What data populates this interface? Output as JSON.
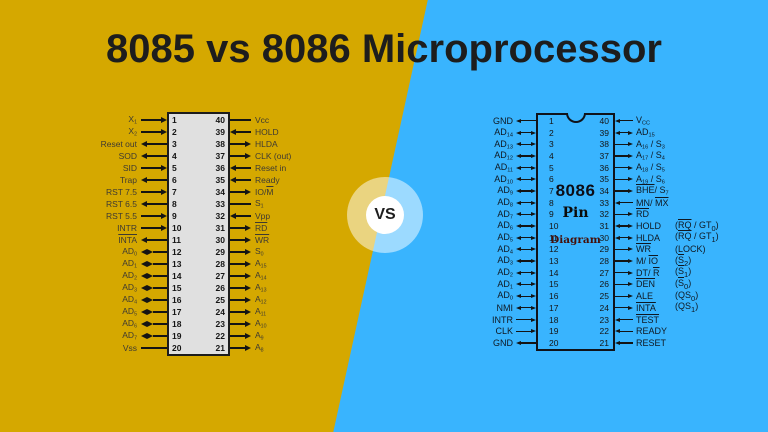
{
  "title": "8085 vs 8086 Microprocessor",
  "vs_badge": {
    "label": "VS"
  },
  "colors": {
    "left_background": "#d5a800",
    "right_background": "#39b4fe",
    "title_text": "#1d1d1d",
    "chip_8085_fill": "#e0e0e0",
    "line_color": "#141414",
    "diagram_word_color": "#44100a"
  },
  "chip_8085": {
    "name": "8085",
    "left_pins": [
      {
        "n": 1,
        "l": "X_{1}",
        "a": "chip"
      },
      {
        "n": 2,
        "l": "X_{2}",
        "a": "chip"
      },
      {
        "n": 3,
        "l": "Reset out",
        "a": "label"
      },
      {
        "n": 4,
        "l": "SOD",
        "a": "label"
      },
      {
        "n": 5,
        "l": "SID",
        "a": "chip"
      },
      {
        "n": 6,
        "l": "Trap",
        "a": "label"
      },
      {
        "n": 7,
        "l": "RST 7.5",
        "a": "chip"
      },
      {
        "n": 8,
        "l": "RST 6.5",
        "a": "label"
      },
      {
        "n": 9,
        "l": "RST 5.5",
        "a": "chip"
      },
      {
        "n": 10,
        "l": "INTR",
        "a": "chip"
      },
      {
        "n": 11,
        "l": "~INTA~",
        "a": "label"
      },
      {
        "n": 12,
        "l": "AD_{0}",
        "a": "bi"
      },
      {
        "n": 13,
        "l": "AD_{1}",
        "a": "bi"
      },
      {
        "n": 14,
        "l": "AD_{2}",
        "a": "bi"
      },
      {
        "n": 15,
        "l": "AD_{3}",
        "a": "bi"
      },
      {
        "n": 16,
        "l": "AD_{4}",
        "a": "bi"
      },
      {
        "n": 17,
        "l": "AD_{5}",
        "a": "bi"
      },
      {
        "n": 18,
        "l": "AD_{6}",
        "a": "bi"
      },
      {
        "n": 19,
        "l": "AD_{7}",
        "a": "bi"
      },
      {
        "n": 20,
        "l": "Vss",
        "a": "none"
      }
    ],
    "right_pins": [
      {
        "n": 40,
        "l": "Vcc",
        "a": "none"
      },
      {
        "n": 39,
        "l": "HOLD",
        "a": "chip"
      },
      {
        "n": 38,
        "l": "HLDA",
        "a": "label"
      },
      {
        "n": 37,
        "l": "CLK (out)",
        "a": "label"
      },
      {
        "n": 36,
        "l": "Reset in",
        "a": "chip"
      },
      {
        "n": 35,
        "l": "Ready",
        "a": "chip"
      },
      {
        "n": 34,
        "l": "IO/~M~",
        "a": "label"
      },
      {
        "n": 33,
        "l": "S_{1}",
        "a": "none"
      },
      {
        "n": 32,
        "l": "Vpp",
        "a": "chip"
      },
      {
        "n": 31,
        "l": "~RD~",
        "a": "label"
      },
      {
        "n": 30,
        "l": "~WR~",
        "a": "label"
      },
      {
        "n": 29,
        "l": "S_{0}",
        "a": "label"
      },
      {
        "n": 28,
        "l": "A_{15}",
        "a": "label"
      },
      {
        "n": 27,
        "l": "A_{14}",
        "a": "label"
      },
      {
        "n": 26,
        "l": "A_{13}",
        "a": "label"
      },
      {
        "n": 25,
        "l": "A_{12}",
        "a": "label"
      },
      {
        "n": 24,
        "l": "A_{11}",
        "a": "label"
      },
      {
        "n": 23,
        "l": "A_{10}",
        "a": "label"
      },
      {
        "n": 22,
        "l": "A_{9}",
        "a": "label"
      },
      {
        "n": 21,
        "l": "A_{8}",
        "a": "label"
      }
    ]
  },
  "chip_8086": {
    "name": "8086",
    "center_text": {
      "line1": "8086",
      "line2": "Pin",
      "line3": "Diagram"
    },
    "left_pins": [
      {
        "n": 1,
        "l": "GND",
        "a": "label"
      },
      {
        "n": 2,
        "l": "AD_{14}",
        "a": "bi"
      },
      {
        "n": 3,
        "l": "AD_{13}",
        "a": "bi"
      },
      {
        "n": 4,
        "l": "AD_{12}",
        "a": "bi"
      },
      {
        "n": 5,
        "l": "AD_{11}",
        "a": "bi"
      },
      {
        "n": 6,
        "l": "AD_{10}",
        "a": "bi"
      },
      {
        "n": 7,
        "l": "AD_{9}",
        "a": "bi"
      },
      {
        "n": 8,
        "l": "AD_{8}",
        "a": "bi"
      },
      {
        "n": 9,
        "l": "AD_{7}",
        "a": "bi"
      },
      {
        "n": 10,
        "l": "AD_{6}",
        "a": "bi"
      },
      {
        "n": 11,
        "l": "AD_{5}",
        "a": "bi"
      },
      {
        "n": 12,
        "l": "AD_{4}",
        "a": "bi"
      },
      {
        "n": 13,
        "l": "AD_{3}",
        "a": "bi"
      },
      {
        "n": 14,
        "l": "AD_{2}",
        "a": "bi"
      },
      {
        "n": 15,
        "l": "AD_{1}",
        "a": "bi"
      },
      {
        "n": 16,
        "l": "AD_{0}",
        "a": "bi"
      },
      {
        "n": 17,
        "l": "NMI",
        "a": "bi"
      },
      {
        "n": 18,
        "l": "INTR",
        "a": "chip"
      },
      {
        "n": 19,
        "l": "CLK",
        "a": "chip"
      },
      {
        "n": 20,
        "l": "GND",
        "a": "label"
      }
    ],
    "right_pins": [
      {
        "n": 40,
        "l": "V_{CC}",
        "a": "chip"
      },
      {
        "n": 39,
        "l": "AD_{15}",
        "a": "bi"
      },
      {
        "n": 38,
        "l": "A_{16} / S_{3}",
        "a": "label"
      },
      {
        "n": 37,
        "l": "A_{17} / S_{4}",
        "a": "label"
      },
      {
        "n": 36,
        "l": "A_{18} / S_{5}",
        "a": "label"
      },
      {
        "n": 35,
        "l": "A_{19} / S_{6}",
        "a": "label"
      },
      {
        "n": 34,
        "l": "~BHE~/ S_{7}",
        "a": "label"
      },
      {
        "n": 33,
        "l": "MN/ ~MX~",
        "a": "chip"
      },
      {
        "n": 32,
        "l": "~RD~",
        "a": "label"
      },
      {
        "n": 31,
        "l": "HOLD",
        "a": "bi",
        "x": "(~RQ~ / GT_{0})"
      },
      {
        "n": 30,
        "l": "HLDA",
        "a": "bi",
        "x": "(~RQ~ / GT_{1})"
      },
      {
        "n": 29,
        "l": "~WR~",
        "a": "label",
        "x": "(LOCK)"
      },
      {
        "n": 28,
        "l": "M/ ~IO~",
        "a": "label",
        "x": "(~S~_{2})"
      },
      {
        "n": 27,
        "l": "DT/ ~R~",
        "a": "label",
        "x": "(~S~_{1})"
      },
      {
        "n": 26,
        "l": "~DEN~",
        "a": "label",
        "x": "(~S~_{0})"
      },
      {
        "n": 25,
        "l": "ALE",
        "a": "label",
        "x": "(QS_{0})"
      },
      {
        "n": 24,
        "l": "~INTA~",
        "a": "label",
        "x": "(QS_{1})"
      },
      {
        "n": 23,
        "l": "~TEST~",
        "a": "chip"
      },
      {
        "n": 22,
        "l": "READY",
        "a": "chip"
      },
      {
        "n": 21,
        "l": "RESET",
        "a": "chip"
      }
    ]
  }
}
